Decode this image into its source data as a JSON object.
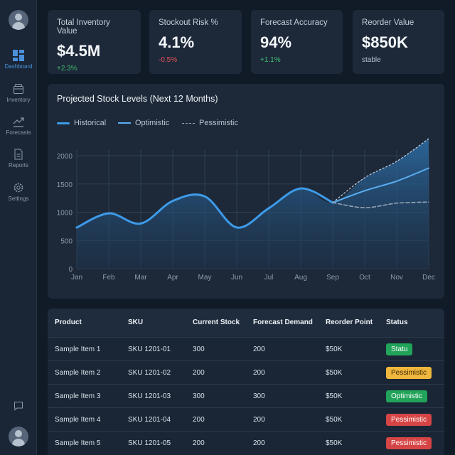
{
  "sidebar": {
    "items": [
      {
        "label": "Dashboard",
        "icon": "dashboard-icon",
        "active": true
      },
      {
        "label": "Inventory",
        "icon": "inventory-box-icon"
      },
      {
        "label": "Forecasts",
        "icon": "trend-chart-icon"
      },
      {
        "label": "Reports",
        "icon": "document-icon"
      },
      {
        "label": "Settings",
        "icon": "gear-icon"
      }
    ],
    "bottom_icons": [
      "chat-icon",
      "user-avatar-icon"
    ]
  },
  "kpis": [
    {
      "title": "Total Inventory Value",
      "value": "$4.5M",
      "delta": "+2.3%",
      "color": "#3fbf6f"
    },
    {
      "title": "Stockout Risk %",
      "value": "4.1%",
      "delta": "-0.5%",
      "color": "#e0525a"
    },
    {
      "title": "Forecast Accuracy",
      "value": "94%",
      "delta": "+1.1%",
      "color": "#3fbf6f"
    },
    {
      "title": "Reorder Value",
      "value": "$850K",
      "delta": "stable",
      "color": "#b8c3cf"
    }
  ],
  "chart_data": {
    "type": "line",
    "title": "Projected Stock Levels (Next 12 Months)",
    "categories": [
      "Jan",
      "Feb",
      "Mar",
      "Apr",
      "May",
      "Jun",
      "Jul",
      "Aug",
      "Sep",
      "Oct",
      "Nov",
      "Dec"
    ],
    "ylim": [
      0,
      2000
    ],
    "yticks": [
      0,
      500,
      1000,
      1500,
      2000
    ],
    "grid": true,
    "legend_position": "top-left",
    "series": [
      {
        "name": "Historical",
        "values": [
          730,
          980,
          800,
          1200,
          1280,
          730,
          1070,
          1420,
          1170,
          null,
          null,
          null
        ],
        "color": "#3d9ae8",
        "style": "solid-thick"
      },
      {
        "name": "Optimistic",
        "values": [
          null,
          null,
          null,
          null,
          null,
          null,
          null,
          null,
          1170,
          1380,
          1550,
          1780
        ],
        "color": "#5aaef0",
        "style": "solid"
      },
      {
        "name": "Pessimistic",
        "values": [
          null,
          null,
          null,
          null,
          null,
          null,
          null,
          null,
          1170,
          1080,
          1160,
          1180
        ],
        "color": "#9aa8b8",
        "style": "dashed"
      }
    ],
    "band_upper": [
      null,
      null,
      null,
      null,
      null,
      null,
      null,
      null,
      1170,
      1610,
      1900,
      2300
    ]
  },
  "table": {
    "headers": [
      "Product",
      "SKU",
      "Current Stock",
      "Forecast Demand",
      "Reorder Point",
      "Status"
    ],
    "rows": [
      {
        "product": "Sample Item 1",
        "sku": "SKU 1201-01",
        "stock": "300",
        "demand": "200",
        "reorder": "$50K",
        "status": "Statu",
        "status_color": "#22a35a",
        "text_color": "#ffffff"
      },
      {
        "product": "Sample Item 2",
        "sku": "SKU 1201-02",
        "stock": "200",
        "demand": "200",
        "reorder": "$50K",
        "status": "Pessimistic",
        "status_color": "#f0b73d",
        "text_color": "#3a2a05"
      },
      {
        "product": "Sample Item 3",
        "sku": "SKU 1201-03",
        "stock": "300",
        "demand": "300",
        "reorder": "$50K",
        "status": "Optimistic",
        "status_color": "#22a35a",
        "text_color": "#ffffff"
      },
      {
        "product": "Sample Item 4",
        "sku": "SKU 1201-04",
        "stock": "200",
        "demand": "200",
        "reorder": "$50K",
        "status": "Pessimistic",
        "status_color": "#d64545",
        "text_color": "#ffffff"
      },
      {
        "product": "Sample Item 5",
        "sku": "SKU 1201-05",
        "stock": "200",
        "demand": "200",
        "reorder": "$50K",
        "status": "Pessimistic",
        "status_color": "#d64545",
        "text_color": "#ffffff"
      }
    ]
  }
}
